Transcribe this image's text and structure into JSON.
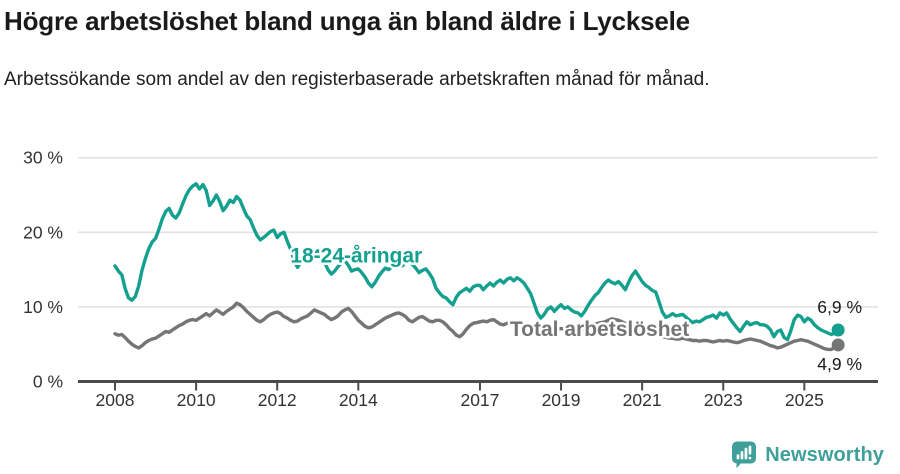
{
  "header": {
    "title": "Högre arbetslöshet bland unga än bland äldre i Lycksele",
    "subtitle": "Arbetssökande som andel av den registerbaserade arbetskraften månad för månad."
  },
  "colors": {
    "accent_teal": "#14a08f",
    "line_gray": "#757575",
    "gridline": "#e2e2e2",
    "axis": "#4b4b4b",
    "tick_text": "#333333",
    "end_label_text": "#1a1a1a",
    "brand_teal": "#3fa09a",
    "background": "#ffffff"
  },
  "chart_data": {
    "type": "line",
    "title": "Högre arbetslöshet bland unga än bland äldre i Lycksele",
    "xlabel": "",
    "ylabel": "",
    "frequency": "monthly",
    "x_start_year": 2008,
    "ylim": [
      0,
      30
    ],
    "grid": "horizontal",
    "yticks": [
      {
        "value": 0,
        "label": "0 %"
      },
      {
        "value": 10,
        "label": "10 %"
      },
      {
        "value": 20,
        "label": "20 %"
      },
      {
        "value": 30,
        "label": "30 %"
      }
    ],
    "xticks": [
      {
        "year": 2008,
        "label": "2008"
      },
      {
        "year": 2010,
        "label": "2010"
      },
      {
        "year": 2012,
        "label": "2012"
      },
      {
        "year": 2014,
        "label": "2014"
      },
      {
        "year": 2017,
        "label": "2017"
      },
      {
        "year": 2019,
        "label": "2019"
      },
      {
        "year": 2021,
        "label": "2021"
      },
      {
        "year": 2023,
        "label": "2023"
      },
      {
        "year": 2025,
        "label": "2025"
      }
    ],
    "series": [
      {
        "name": "18-24-åringar",
        "color": "#14a08f",
        "end_label": "6,9 %",
        "end_value": 6.9,
        "label_anchor": {
          "year": 2013.95,
          "value": 16.9
        },
        "values": [
          15.5,
          14.8,
          14.3,
          12.5,
          11.2,
          10.9,
          11.4,
          12.8,
          14.9,
          16.5,
          17.8,
          18.7,
          19.2,
          20.4,
          21.8,
          22.8,
          23.2,
          22.3,
          21.9,
          22.6,
          23.8,
          24.9,
          25.7,
          26.2,
          26.5,
          25.8,
          26.4,
          25.6,
          23.6,
          24.2,
          25.0,
          24.1,
          22.9,
          23.5,
          24.3,
          24.0,
          24.8,
          24.3,
          23.2,
          22.2,
          21.7,
          20.6,
          19.6,
          19.0,
          19.3,
          19.7,
          20.1,
          20.3,
          19.3,
          19.8,
          20.0,
          18.8,
          17.7,
          16.2,
          15.3,
          16.1,
          17.0,
          16.8,
          16.4,
          17.0,
          17.5,
          16.8,
          16.0,
          15.0,
          14.4,
          14.8,
          15.4,
          15.9,
          16.2,
          15.6,
          14.8,
          15.0,
          15.1,
          14.6,
          14.0,
          13.2,
          12.7,
          13.3,
          14.1,
          14.7,
          15.2,
          15.0,
          15.4,
          15.6,
          15.8,
          15.5,
          15.9,
          16.1,
          15.7,
          15.2,
          14.6,
          14.9,
          15.1,
          14.5,
          13.8,
          12.5,
          11.9,
          11.4,
          11.2,
          10.7,
          10.3,
          11.3,
          11.9,
          12.2,
          12.5,
          12.1,
          12.7,
          12.9,
          12.9,
          12.3,
          12.8,
          13.2,
          12.8,
          13.3,
          13.6,
          13.2,
          13.7,
          13.9,
          13.5,
          13.9,
          13.6,
          13.2,
          12.5,
          11.8,
          10.5,
          9.2,
          8.5,
          9.0,
          9.7,
          10.0,
          9.4,
          9.9,
          10.3,
          9.8,
          10.0,
          9.6,
          9.3,
          9.2,
          8.8,
          9.4,
          10.2,
          10.9,
          11.5,
          11.9,
          12.6,
          13.2,
          13.6,
          13.3,
          13.1,
          13.4,
          12.9,
          12.3,
          13.3,
          14.2,
          14.8,
          14.1,
          13.4,
          12.9,
          12.6,
          12.2,
          12.0,
          10.7,
          9.3,
          8.6,
          8.8,
          9.1,
          8.8,
          8.9,
          9.0,
          8.6,
          8.2,
          7.9,
          8.1,
          8.0,
          8.3,
          8.6,
          8.7,
          8.9,
          8.5,
          9.2,
          8.9,
          9.2,
          8.4,
          7.8,
          7.2,
          6.7,
          7.4,
          8.0,
          7.6,
          7.8,
          7.9,
          7.6,
          7.6,
          7.4,
          6.9,
          6.0,
          6.7,
          6.9,
          5.9,
          5.6,
          6.8,
          8.3,
          8.9,
          8.7,
          8.0,
          8.5,
          8.2,
          7.6,
          7.2,
          6.9,
          6.7,
          6.5,
          6.3,
          6.5,
          6.9
        ]
      },
      {
        "name": "Total arbetslöshet",
        "color": "#757575",
        "end_label": "4,9 %",
        "end_value": 4.9,
        "label_anchor": {
          "year": 2019.95,
          "value": 7.05
        },
        "values": [
          6.4,
          6.2,
          6.3,
          5.9,
          5.4,
          5.0,
          4.7,
          4.5,
          4.8,
          5.2,
          5.5,
          5.7,
          5.8,
          6.1,
          6.4,
          6.7,
          6.6,
          6.9,
          7.2,
          7.5,
          7.7,
          8.0,
          8.2,
          8.3,
          8.2,
          8.5,
          8.8,
          9.1,
          8.8,
          9.2,
          9.6,
          9.3,
          9.0,
          9.4,
          9.7,
          10.0,
          10.5,
          10.3,
          9.9,
          9.4,
          9.0,
          8.6,
          8.2,
          8.0,
          8.3,
          8.7,
          9.0,
          9.2,
          9.3,
          9.1,
          8.7,
          8.5,
          8.2,
          8.0,
          8.1,
          8.4,
          8.6,
          8.8,
          9.2,
          9.6,
          9.4,
          9.2,
          9.0,
          8.6,
          8.3,
          8.5,
          8.8,
          9.3,
          9.6,
          9.8,
          9.4,
          8.8,
          8.2,
          7.8,
          7.4,
          7.2,
          7.3,
          7.6,
          7.9,
          8.2,
          8.5,
          8.7,
          8.9,
          9.1,
          9.2,
          9.0,
          8.7,
          8.2,
          8.0,
          8.3,
          8.6,
          8.7,
          8.4,
          8.1,
          8.0,
          8.2,
          8.2,
          8.0,
          7.6,
          7.1,
          6.7,
          6.2,
          6.0,
          6.4,
          7.0,
          7.5,
          7.8,
          7.9,
          8.0,
          8.1,
          8.0,
          8.2,
          8.3,
          8.0,
          7.7,
          7.6,
          7.8,
          8.0,
          7.9,
          7.8,
          7.7,
          7.5,
          7.3,
          7.1,
          6.9,
          6.7,
          6.6,
          6.8,
          6.9,
          7.0,
          7.1,
          7.0,
          7.1,
          7.0,
          6.9,
          6.8,
          6.7,
          6.8,
          6.9,
          7.1,
          7.3,
          7.5,
          7.7,
          7.8,
          7.9,
          8.0,
          8.2,
          8.4,
          8.3,
          8.2,
          8.0,
          7.8,
          7.7,
          7.6,
          7.4,
          7.2,
          7.0,
          6.9,
          6.8,
          6.6,
          6.4,
          6.2,
          6.0,
          5.9,
          5.8,
          5.8,
          5.7,
          5.7,
          5.8,
          5.7,
          5.6,
          5.5,
          5.5,
          5.4,
          5.5,
          5.5,
          5.4,
          5.3,
          5.4,
          5.5,
          5.4,
          5.5,
          5.4,
          5.3,
          5.2,
          5.3,
          5.5,
          5.6,
          5.7,
          5.6,
          5.5,
          5.4,
          5.2,
          5.0,
          4.8,
          4.7,
          4.5,
          4.6,
          4.8,
          5.0,
          5.2,
          5.4,
          5.5,
          5.6,
          5.5,
          5.4,
          5.2,
          5.0,
          4.8,
          4.6,
          4.4,
          4.3,
          4.3,
          4.6,
          4.9
        ]
      }
    ]
  },
  "footer": {
    "brand": "Newsworthy"
  }
}
